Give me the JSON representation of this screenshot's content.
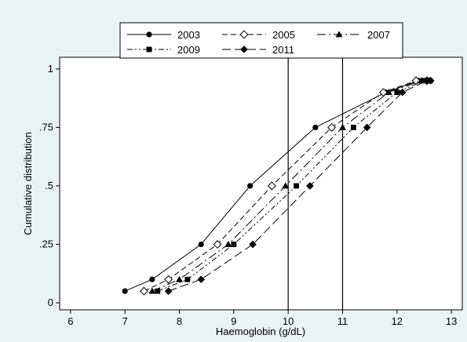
{
  "colors": {
    "background": "#eaf2f3",
    "plot_background": "#ffffff",
    "series": "#000000"
  },
  "chart_data": {
    "type": "line",
    "title": "",
    "xlabel": "Haemoglobin (g/dL)",
    "ylabel": "Cumulative distribution",
    "xlim": [
      5.8,
      13.2
    ],
    "ylim": [
      -0.03,
      1.05
    ],
    "x_ticks": [
      6,
      7,
      8,
      9,
      10,
      11,
      12,
      13
    ],
    "x_tick_labels": [
      "6",
      "7",
      "8",
      "9",
      "10",
      "11",
      "12",
      "13"
    ],
    "y_ticks": [
      0,
      0.25,
      0.5,
      0.75,
      1
    ],
    "y_tick_labels": [
      "0",
      ".25",
      ".5",
      ".75",
      "1"
    ],
    "grid": false,
    "reference_lines_x": [
      10,
      11
    ],
    "legend_position": "top",
    "series": [
      {
        "name": "2003",
        "marker": "circle",
        "line_style": "solid",
        "x": [
          7.0,
          7.5,
          8.4,
          9.3,
          10.5,
          11.8,
          12.4,
          12.6
        ],
        "y": [
          0.05,
          0.1,
          0.25,
          0.5,
          0.75,
          0.9,
          0.95,
          0.95
        ]
      },
      {
        "name": "2005",
        "marker": "diamond-open",
        "line_style": "dash",
        "x": [
          7.35,
          7.8,
          8.7,
          9.7,
          10.8,
          11.75,
          12.35,
          12.55
        ],
        "y": [
          0.05,
          0.1,
          0.25,
          0.5,
          0.75,
          0.9,
          0.95,
          0.95
        ]
      },
      {
        "name": "2007",
        "marker": "triangle",
        "line_style": "longdash-dot",
        "x": [
          7.5,
          8.0,
          8.9,
          9.95,
          11.0,
          11.85,
          12.45,
          12.6
        ],
        "y": [
          0.05,
          0.1,
          0.25,
          0.5,
          0.75,
          0.9,
          0.95,
          0.95
        ]
      },
      {
        "name": "2009",
        "marker": "square",
        "line_style": "dash-dot-dot",
        "x": [
          7.6,
          8.15,
          9.0,
          10.15,
          11.2,
          12.0,
          12.5,
          12.6
        ],
        "y": [
          0.05,
          0.1,
          0.25,
          0.5,
          0.75,
          0.9,
          0.95,
          0.95
        ]
      },
      {
        "name": "2011",
        "marker": "diamond",
        "line_style": "longdash",
        "x": [
          7.8,
          8.4,
          9.35,
          10.4,
          11.45,
          12.1,
          12.55,
          12.62
        ],
        "y": [
          0.05,
          0.1,
          0.25,
          0.5,
          0.75,
          0.9,
          0.95,
          0.95
        ]
      }
    ]
  }
}
